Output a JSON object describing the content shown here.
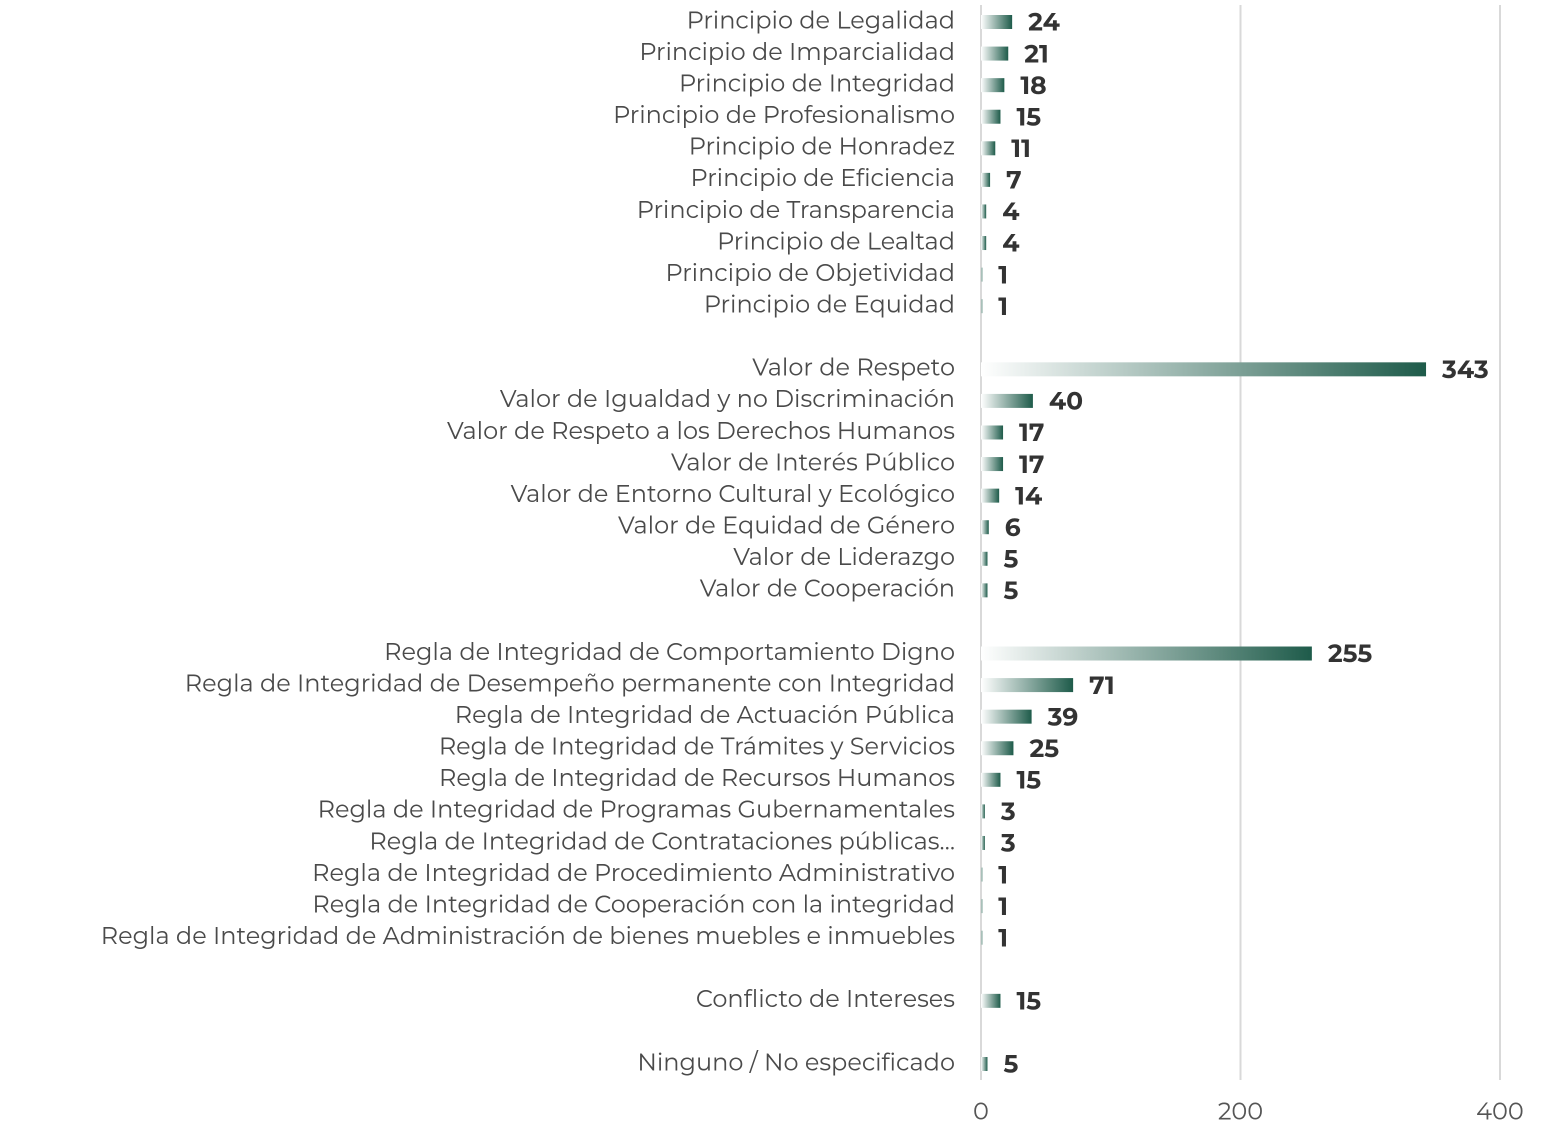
{
  "chart_data": {
    "type": "bar",
    "orientation": "horizontal",
    "categories": [
      "Principio de Legalidad",
      "Principio de Imparcialidad",
      "Principio de Integridad",
      "Principio de Profesionalismo",
      "Principio de Honradez",
      "Principio de Eficiencia",
      "Principio de Transparencia",
      "Principio de Lealtad",
      "Principio de Objetividad",
      "Principio de Equidad",
      null,
      "Valor de Respeto",
      "Valor de Igualdad y no Discriminación",
      "Valor de Respeto a los Derechos Humanos",
      "Valor de Interés Público",
      "Valor de Entorno Cultural y Ecológico",
      "Valor de Equidad de Género",
      "Valor de Liderazgo",
      "Valor de Cooperación",
      null,
      "Regla de Integridad de Comportamiento Digno",
      "Regla de Integridad de Desempeño permanente con Integridad",
      "Regla de Integridad de Actuación Pública",
      "Regla de Integridad de Trámites y Servicios",
      "Regla de Integridad de Recursos Humanos",
      "Regla de Integridad de Programas Gubernamentales",
      "Regla de Integridad de Contrataciones públicas…",
      "Regla de Integridad de Procedimiento Administrativo",
      "Regla de Integridad de Cooperación con la integridad",
      "Regla de Integridad de Administración de bienes muebles e inmuebles",
      null,
      "Conflicto de Intereses",
      null,
      "Ninguno / No especificado"
    ],
    "values": [
      24,
      21,
      18,
      15,
      11,
      7,
      4,
      4,
      1,
      1,
      null,
      343,
      40,
      17,
      17,
      14,
      6,
      5,
      5,
      null,
      255,
      71,
      39,
      25,
      15,
      3,
      3,
      1,
      1,
      1,
      null,
      15,
      null,
      5
    ],
    "color": "#1e5b4a",
    "xlim": [
      0,
      400
    ],
    "xticks": [
      0,
      200,
      400
    ],
    "grid": true
  }
}
